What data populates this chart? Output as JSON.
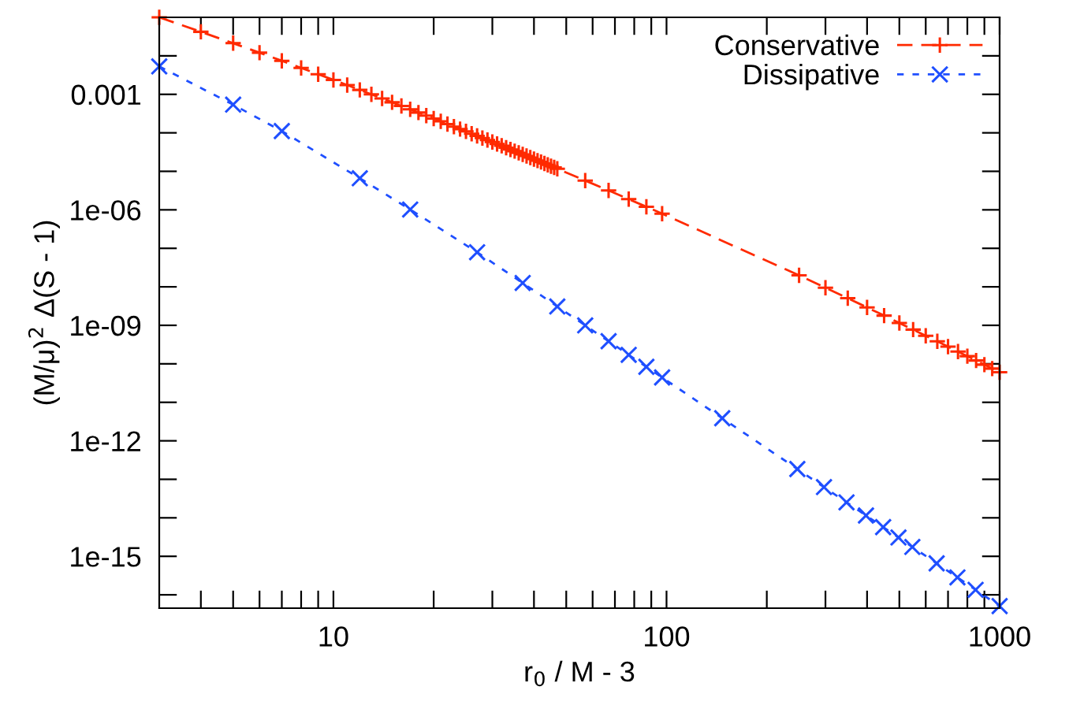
{
  "chart_data": {
    "type": "line",
    "xlabel": "r$_{0}$ / M - 3",
    "ylabel": "(M/μ)$^{2}$ Δ(S - 1)",
    "log": "xy",
    "grid": false,
    "legend": "top right",
    "xlim": [
      3,
      1000
    ],
    "ylim": [
      4.5e-17,
      0.1
    ],
    "xticks": [
      {
        "value": 4,
        "label": null
      },
      {
        "value": 5,
        "label": null
      },
      {
        "value": 6,
        "label": null
      },
      {
        "value": 7,
        "label": null
      },
      {
        "value": 8,
        "label": null
      },
      {
        "value": 9,
        "label": null
      },
      10,
      {
        "value": 20,
        "label": null
      },
      {
        "value": 30,
        "label": null
      },
      {
        "value": 40,
        "label": null
      },
      {
        "value": 50,
        "label": null
      },
      {
        "value": 60,
        "label": null
      },
      {
        "value": 70,
        "label": null
      },
      {
        "value": 80,
        "label": null
      },
      {
        "value": 90,
        "label": null
      },
      100,
      {
        "value": 200,
        "label": null
      },
      {
        "value": 300,
        "label": null
      },
      {
        "value": 400,
        "label": null
      },
      {
        "value": 500,
        "label": null
      },
      {
        "value": 600,
        "label": null
      },
      {
        "value": 700,
        "label": null
      },
      {
        "value": 800,
        "label": null
      },
      {
        "value": 900,
        "label": null
      },
      1000
    ],
    "yticks": [
      {
        "value": 0.01,
        "label": null
      },
      0.001,
      {
        "value": 0.0001,
        "label": null
      },
      {
        "value": 1e-05,
        "label": null
      },
      {
        "value": 1e-06,
        "label": "1e-06"
      },
      {
        "value": 1e-07,
        "label": null
      },
      {
        "value": 1e-08,
        "label": null
      },
      {
        "value": 1e-09,
        "label": "1e-09"
      },
      {
        "value": 1e-10,
        "label": null
      },
      {
        "value": 1e-11,
        "label": null
      },
      {
        "value": 1e-12,
        "label": "1e-12"
      },
      {
        "value": 1e-13,
        "label": null
      },
      {
        "value": 1e-14,
        "label": null
      },
      {
        "value": 1e-15,
        "label": "1e-15"
      },
      {
        "value": 1e-16,
        "label": null
      }
    ],
    "series": [
      {
        "name": "Conservative",
        "color": "#ff2a00",
        "marker": "plus",
        "line_style": "dashed",
        "x": [
          3,
          4,
          5,
          6,
          7,
          8,
          9,
          10,
          11,
          12,
          13,
          14,
          15,
          16,
          17,
          18,
          19,
          20,
          21,
          22,
          23,
          24,
          25,
          26,
          27,
          28,
          29,
          30,
          31,
          32,
          33,
          34,
          35,
          36,
          37,
          38,
          39,
          40,
          41,
          42,
          43,
          44,
          45,
          46,
          47,
          57,
          67,
          77,
          87,
          97,
          250,
          300,
          350,
          400,
          450,
          500,
          550,
          600,
          650,
          700,
          750,
          800,
          850,
          900,
          950,
          1000
        ],
        "values": [
          0.1,
          0.0421,
          0.0213,
          0.01207,
          0.00743,
          0.00486,
          0.00333,
          0.00237,
          0.001734,
          0.001302,
          0.001,
          0.000782,
          0.000621,
          0.0005,
          0.000408,
          0.000336,
          0.00028,
          0.000235,
          0.000199,
          0.000169,
          0.000145,
          0.000125,
          0.000109,
          9.5e-05,
          8.33e-05,
          7.33e-05,
          6.49e-05,
          5.76e-05,
          5.14e-05,
          4.6e-05,
          4.12e-05,
          3.71e-05,
          3.34e-05,
          3.03e-05,
          2.75e-05,
          2.5e-05,
          2.28e-05,
          2.08e-05,
          1.9e-05,
          1.75e-05,
          1.6e-05,
          1.48e-05,
          1.36e-05,
          1.26e-05,
          1.16e-05,
          5.76e-06,
          3.18e-06,
          1.89e-06,
          1.2e-06,
          7.94e-07,
          1.98e-08,
          9.47e-09,
          5.05e-09,
          2.92e-09,
          1.79e-09,
          1.15e-09,
          7.74e-10,
          5.37e-10,
          3.83e-10,
          2.79e-10,
          2.08e-10,
          1.58e-10,
          1.22e-10,
          9.51e-11,
          7.53e-11,
          6.03e-11
        ]
      },
      {
        "name": "Dissipative",
        "color": "#1f4fff",
        "marker": "cross",
        "line_style": "dotted",
        "x": [
          3,
          5,
          7,
          12,
          17,
          27,
          37,
          47,
          57,
          67,
          77,
          87,
          97,
          147,
          247,
          297,
          347,
          397,
          447,
          497,
          547,
          647,
          747,
          847,
          1000
        ],
        "values": [
          0.00531,
          0.00054,
          0.000111,
          6.6e-06,
          1.02e-06,
          7.9e-08,
          1.26e-08,
          3.09e-09,
          9.97e-10,
          3.87e-10,
          1.71e-10,
          8.38e-11,
          4.43e-11,
          3.87e-12,
          1.85e-13,
          6.28e-14,
          2.52e-14,
          1.15e-14,
          5.73e-15,
          3.08e-15,
          1.75e-15,
          6.56e-16,
          2.83e-16,
          1.35e-16,
          5.1e-17
        ]
      }
    ]
  }
}
